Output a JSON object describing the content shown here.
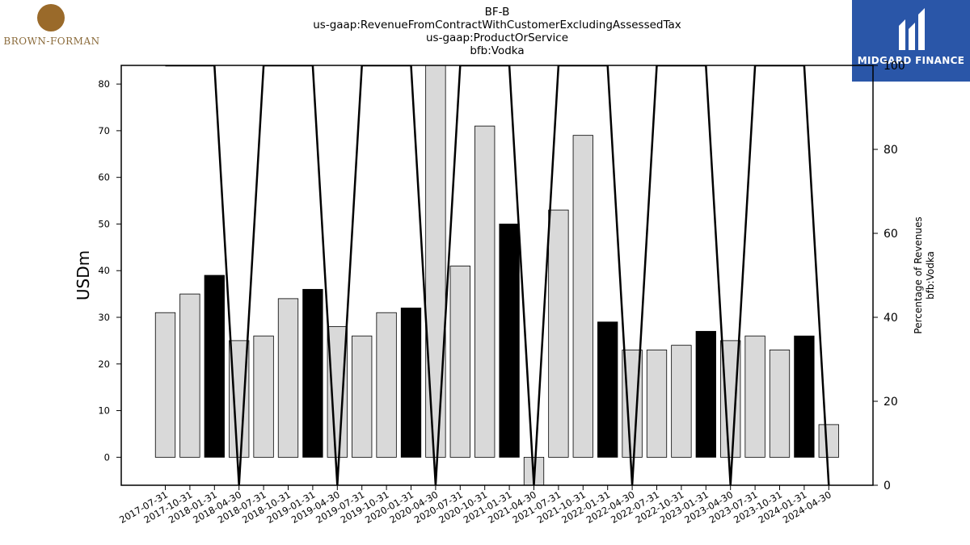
{
  "logos": {
    "left_brand": "BROWN-FORMAN",
    "right_brand": "MIDGARD FINANCE"
  },
  "chart_data": {
    "type": "bar",
    "title_lines": [
      "BF-B",
      "us-gaap:RevenueFromContractWithCustomerExcludingAssessedTax",
      "us-gaap:ProductOrService",
      "bfb:Vodka"
    ],
    "ylabel": "USDm",
    "y2label_lines": [
      "Percentage of Revenues",
      "bfb:Vodka"
    ],
    "categories": [
      "2017-07-31",
      "2017-10-31",
      "2018-01-31",
      "2018-04-30",
      "2018-07-31",
      "2018-10-31",
      "2019-01-31",
      "2019-04-30",
      "2019-07-31",
      "2019-10-31",
      "2020-01-31",
      "2020-04-30",
      "2020-07-31",
      "2020-10-31",
      "2021-01-31",
      "2021-04-30",
      "2021-07-31",
      "2021-10-31",
      "2022-01-31",
      "2022-04-30",
      "2022-07-31",
      "2022-10-31",
      "2023-01-31",
      "2023-04-30",
      "2023-07-31",
      "2023-10-31",
      "2024-01-31",
      "2024-04-30"
    ],
    "values": [
      31,
      35,
      39,
      25,
      26,
      34,
      36,
      28,
      26,
      31,
      32,
      84,
      41,
      71,
      50,
      -6,
      53,
      69,
      29,
      23,
      23,
      24,
      27,
      25,
      26,
      23,
      26,
      7
    ],
    "highlight": [
      false,
      false,
      true,
      false,
      false,
      false,
      true,
      false,
      false,
      false,
      true,
      false,
      false,
      false,
      true,
      false,
      false,
      false,
      true,
      false,
      false,
      false,
      true,
      false,
      false,
      false,
      true,
      false
    ],
    "percentage": [
      100,
      100,
      100,
      0,
      100,
      100,
      100,
      0,
      100,
      100,
      100,
      0,
      100,
      100,
      100,
      0,
      100,
      100,
      100,
      0,
      100,
      100,
      100,
      0,
      100,
      100,
      100,
      0
    ],
    "ylim": [
      -6,
      84
    ],
    "yticks": [
      0,
      10,
      20,
      30,
      40,
      50,
      60,
      70,
      80
    ],
    "y2lim": [
      0,
      100
    ],
    "y2ticks": [
      0,
      20,
      40,
      60,
      80,
      100
    ],
    "colors": {
      "bar": "#d9d9d9",
      "bar_highlight": "#000000",
      "line": "#000000"
    }
  }
}
